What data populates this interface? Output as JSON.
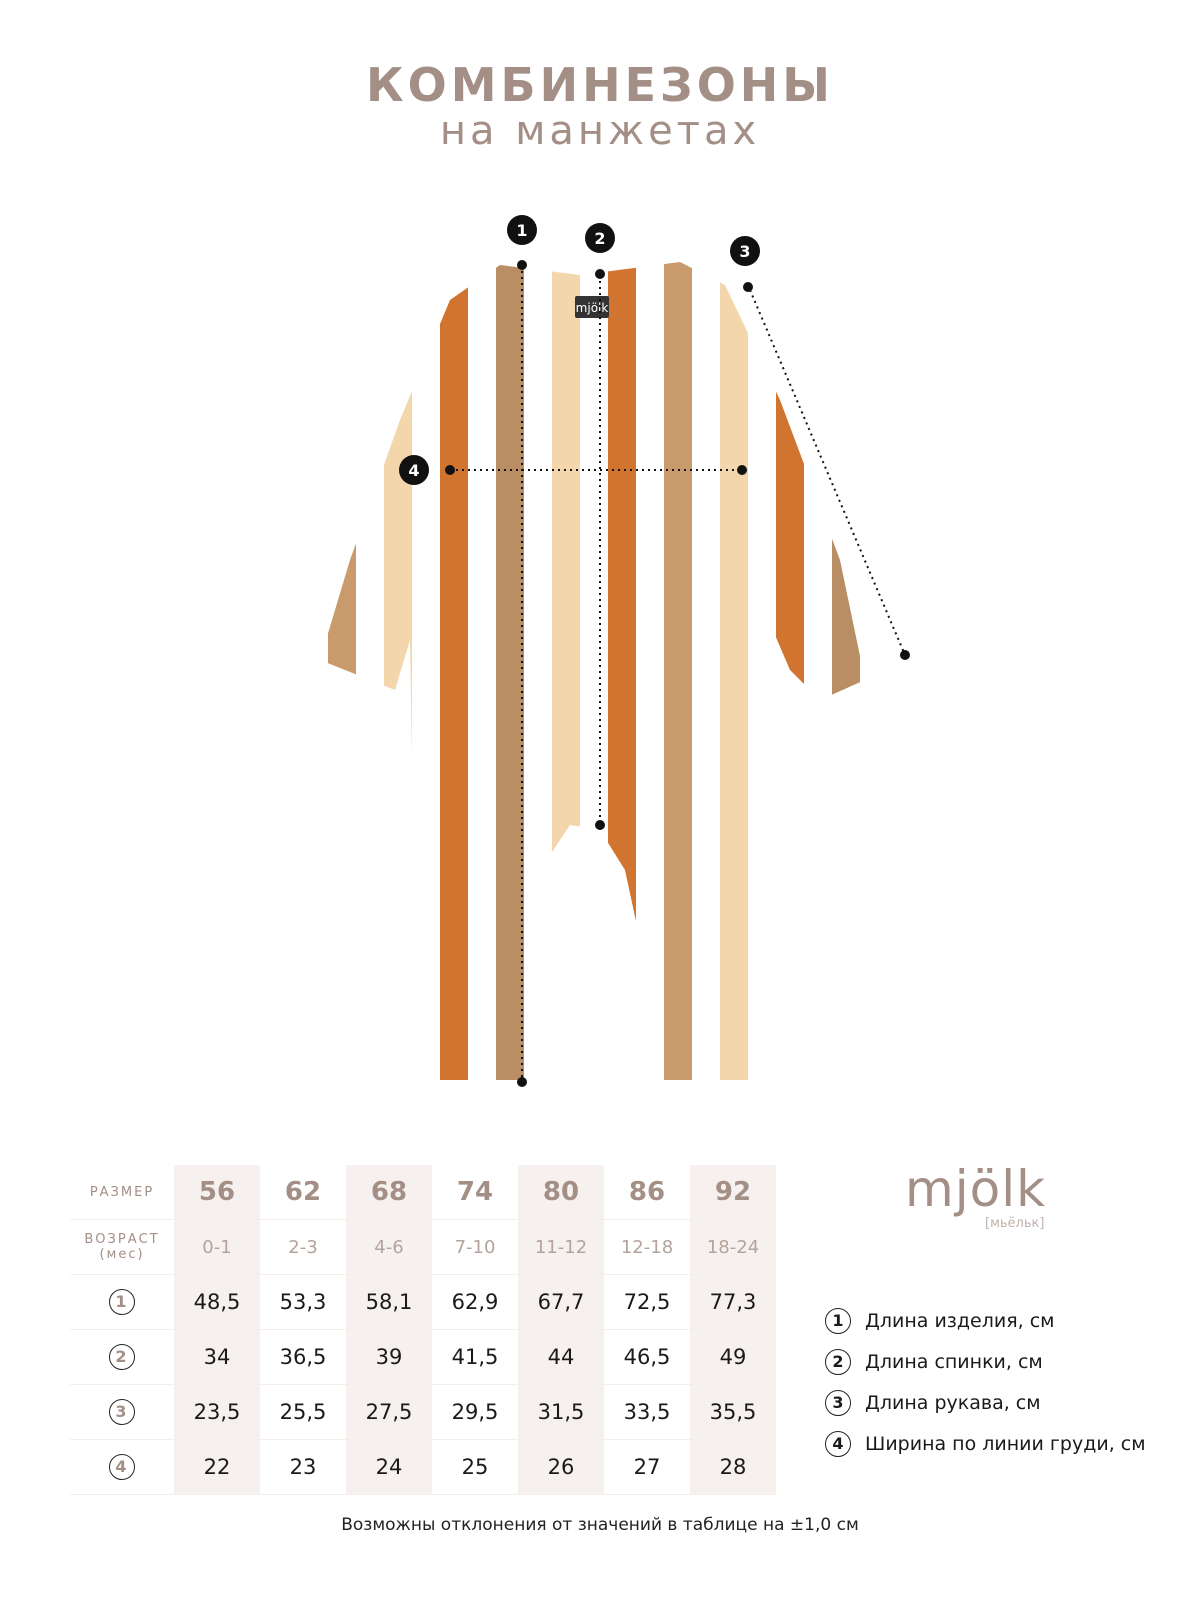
{
  "header": {
    "title": "КОМБИНЕЗОНЫ",
    "subtitle": "на манжетах"
  },
  "garment": {
    "label_logo": "mjölk",
    "markers": [
      "1",
      "2",
      "3",
      "4"
    ],
    "stripe_colors": [
      "#ffffff",
      "#c99a6b",
      "#f3d6ab",
      "#d1742f",
      "#b98e64"
    ]
  },
  "table": {
    "size_label": "РАЗМЕР",
    "age_label": "ВОЗРАСТ",
    "age_unit": "(мес)",
    "sizes": [
      "56",
      "62",
      "68",
      "74",
      "80",
      "86",
      "92"
    ],
    "ages": [
      "0-1",
      "2-3",
      "4-6",
      "7-10",
      "11-12",
      "12-18",
      "18-24"
    ],
    "rows": [
      {
        "marker": "1",
        "values": [
          "48,5",
          "53,3",
          "58,1",
          "62,9",
          "67,7",
          "72,5",
          "77,3"
        ]
      },
      {
        "marker": "2",
        "values": [
          "34",
          "36,5",
          "39",
          "41,5",
          "44",
          "46,5",
          "49"
        ]
      },
      {
        "marker": "3",
        "values": [
          "23,5",
          "25,5",
          "27,5",
          "29,5",
          "31,5",
          "33,5",
          "35,5"
        ]
      },
      {
        "marker": "4",
        "values": [
          "22",
          "23",
          "24",
          "25",
          "26",
          "27",
          "28"
        ]
      }
    ]
  },
  "logo": {
    "main": "mjölk",
    "sub": "[мьёльк]"
  },
  "legend": [
    {
      "marker": "1",
      "label": "Длина изделия, см"
    },
    {
      "marker": "2",
      "label": "Длина спинки, см"
    },
    {
      "marker": "3",
      "label": "Длина рукава, см"
    },
    {
      "marker": "4",
      "label": "Ширина по линии груди, см"
    }
  ],
  "note": "Возможны отклонения от значений в таблице на ±1,0 см",
  "colors": {
    "accent": "#a38f86",
    "shade": "#f6f1ef"
  }
}
